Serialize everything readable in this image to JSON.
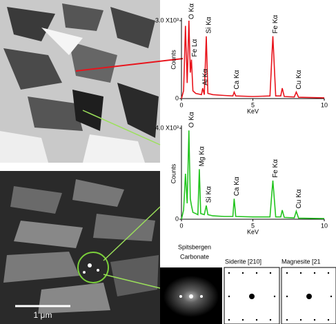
{
  "chart_data": [
    {
      "type": "line",
      "color": "#e8141c",
      "ylabel": "Counts",
      "xlabel": "KeV",
      "x": [
        0,
        0.15,
        0.28,
        0.4,
        0.52,
        0.62,
        0.7,
        0.8,
        1.0,
        1.4,
        1.49,
        1.6,
        1.74,
        1.85,
        2.2,
        3.0,
        3.6,
        3.69,
        3.8,
        5.0,
        6.2,
        6.4,
        6.6,
        6.95,
        7.06,
        7.2,
        7.9,
        8.04,
        8.2,
        10
      ],
      "values": [
        0,
        300,
        2800,
        600,
        3000,
        1000,
        1500,
        300,
        200,
        150,
        400,
        150,
        2400,
        200,
        150,
        120,
        100,
        250,
        100,
        80,
        100,
        2400,
        100,
        100,
        400,
        80,
        60,
        250,
        50,
        30
      ],
      "xlim": [
        0,
        10
      ],
      "xticks": [
        0,
        5,
        10
      ],
      "ylim": [
        0,
        3000
      ],
      "yticks": [
        0,
        {
          "value": 3000,
          "label": "3.0 X10³"
        }
      ],
      "peaks": [
        {
          "label": "O Kα",
          "x": 0.52
        },
        {
          "label": "Fe Lα",
          "x": 0.75
        },
        {
          "label": "Al Kα",
          "x": 1.49
        },
        {
          "label": "Si Kα",
          "x": 1.74
        },
        {
          "label": "Ca Kα",
          "x": 3.69
        },
        {
          "label": "Fe Kα",
          "x": 6.4
        },
        {
          "label": "Cu Kα",
          "x": 8.04
        }
      ]
    },
    {
      "type": "line",
      "color": "#22c41e",
      "ylabel": "Counts",
      "xlabel": "KeV",
      "x": [
        0,
        0.15,
        0.28,
        0.4,
        0.52,
        0.62,
        0.7,
        0.8,
        1.0,
        1.15,
        1.25,
        1.35,
        1.6,
        1.74,
        1.85,
        2.2,
        3.0,
        3.6,
        3.69,
        3.8,
        5.0,
        6.2,
        6.4,
        6.6,
        6.95,
        7.06,
        7.2,
        7.9,
        8.04,
        8.2,
        10
      ],
      "values": [
        0,
        400,
        2000,
        700,
        3900,
        900,
        600,
        300,
        250,
        200,
        2200,
        250,
        200,
        600,
        200,
        150,
        120,
        120,
        900,
        120,
        100,
        100,
        1700,
        100,
        100,
        400,
        80,
        60,
        350,
        50,
        30
      ],
      "xlim": [
        0,
        10
      ],
      "xticks": [
        0,
        5,
        10
      ],
      "ylim": [
        0,
        4000
      ],
      "yticks": [
        0,
        {
          "value": 4000,
          "label": "4.0 X10³"
        }
      ],
      "peaks": [
        {
          "label": "O Kα",
          "x": 0.52
        },
        {
          "label": "Mg Kα",
          "x": 1.25
        },
        {
          "label": "Si Kα",
          "x": 1.74
        },
        {
          "label": "Ca Kα",
          "x": 3.69
        },
        {
          "label": "Fe Kα",
          "x": 6.4
        },
        {
          "label": "Cu Kα",
          "x": 8.04
        }
      ]
    }
  ],
  "figure": {
    "scale_bar": "1 μm",
    "sample": [
      "Spitsbergen",
      "Carbonate"
    ],
    "patterns": [
      "Siderite [210]",
      "Magnesite [21"
    ]
  }
}
